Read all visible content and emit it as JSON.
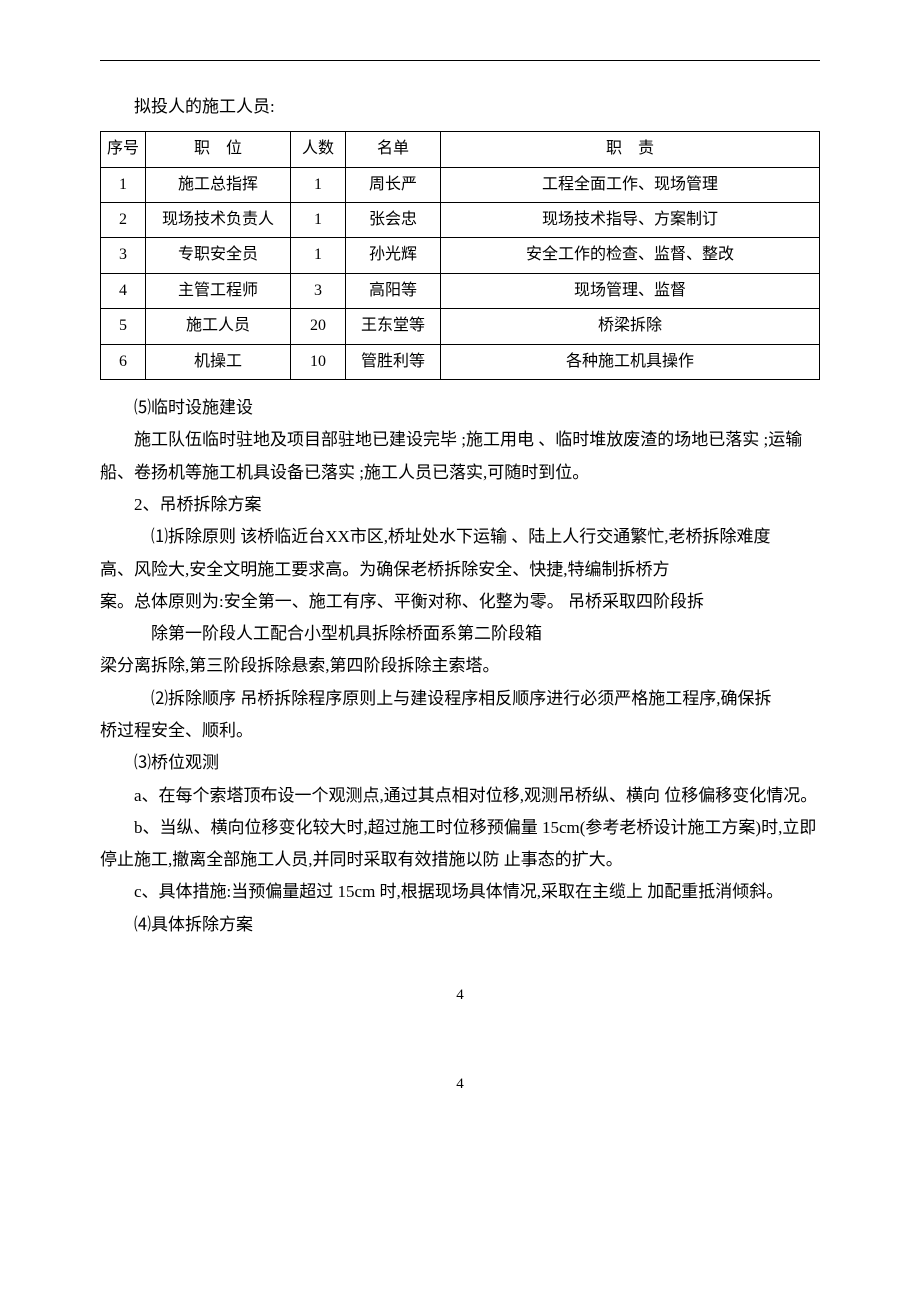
{
  "title": "拟投人的施工人员:",
  "table": {
    "headers": [
      "序号",
      "职　位",
      "人数",
      "名单",
      "职　责"
    ],
    "rows": [
      [
        "1",
        "施工总指挥",
        "1",
        "周长严",
        "工程全面工作、现场管理"
      ],
      [
        "2",
        "现场技术负责人",
        "1",
        "张会忠",
        "现场技术指导、方案制订"
      ],
      [
        "3",
        "专职安全员",
        "1",
        "孙光辉",
        "安全工作的检查、监督、整改"
      ],
      [
        "4",
        "主管工程师",
        "3",
        "高阳等",
        "现场管理、监督"
      ],
      [
        "5",
        "施工人员",
        "20",
        "王东堂等",
        "桥梁拆除"
      ],
      [
        "6",
        "机操工",
        "10",
        "管胜利等",
        "各种施工机具操作"
      ]
    ]
  },
  "paragraphs": {
    "p5_title": "⑸临时设施建设",
    "p5_body": "施工队伍临时驻地及项目部驻地已建设完毕 ;施工用电 、临时堆放废渣的场地已落实 ;运输船、卷扬机等施工机具设备已落实 ;施工人员已落实,可随时到位。",
    "sec2_title": "2、吊桥拆除方案",
    "p1_line1": "⑴拆除原则  该桥临近台XX市区,桥址处水下运输 、陆上人行交通繁忙,老桥拆除难度",
    "p1_line2": "高、风险大,安全文明施工要求高。为确保老桥拆除安全、快捷,特编制拆桥方",
    "p1_line3": "案。总体原则为:安全第一、施工有序、平衡对称、化整为零。 吊桥采取四阶段拆",
    "p1_line4": "除第一阶段人工配合小型机具拆除桥面系第二阶段箱",
    "p1_line5": "梁分离拆除,第三阶段拆除悬索,第四阶段拆除主索塔。",
    "p2_line1": "⑵拆除顺序  吊桥拆除程序原则上与建设程序相反顺序进行必须严格施工程序,确保拆",
    "p2_line2": "桥过程安全、顺利。",
    "p3_title": "⑶桥位观测",
    "p3a": "a、在每个索塔顶布设一个观测点,通过其点相对位移,观测吊桥纵、横向 位移偏移变化情况。",
    "p3b": "b、当纵、横向位移变化较大时,超过施工时位移预偏量  15cm(参考老桥设计施工方案)时,立即停止施工,撤离全部施工人员,并同时采取有效措施以防 止事态的扩大。",
    "p3c": "c、具体措施:当预偏量超过   15cm   时,根据现场具体情况,采取在主缆上 加配重抵消倾斜。",
    "p4_title": "⑷具体拆除方案"
  },
  "page_number": "4"
}
